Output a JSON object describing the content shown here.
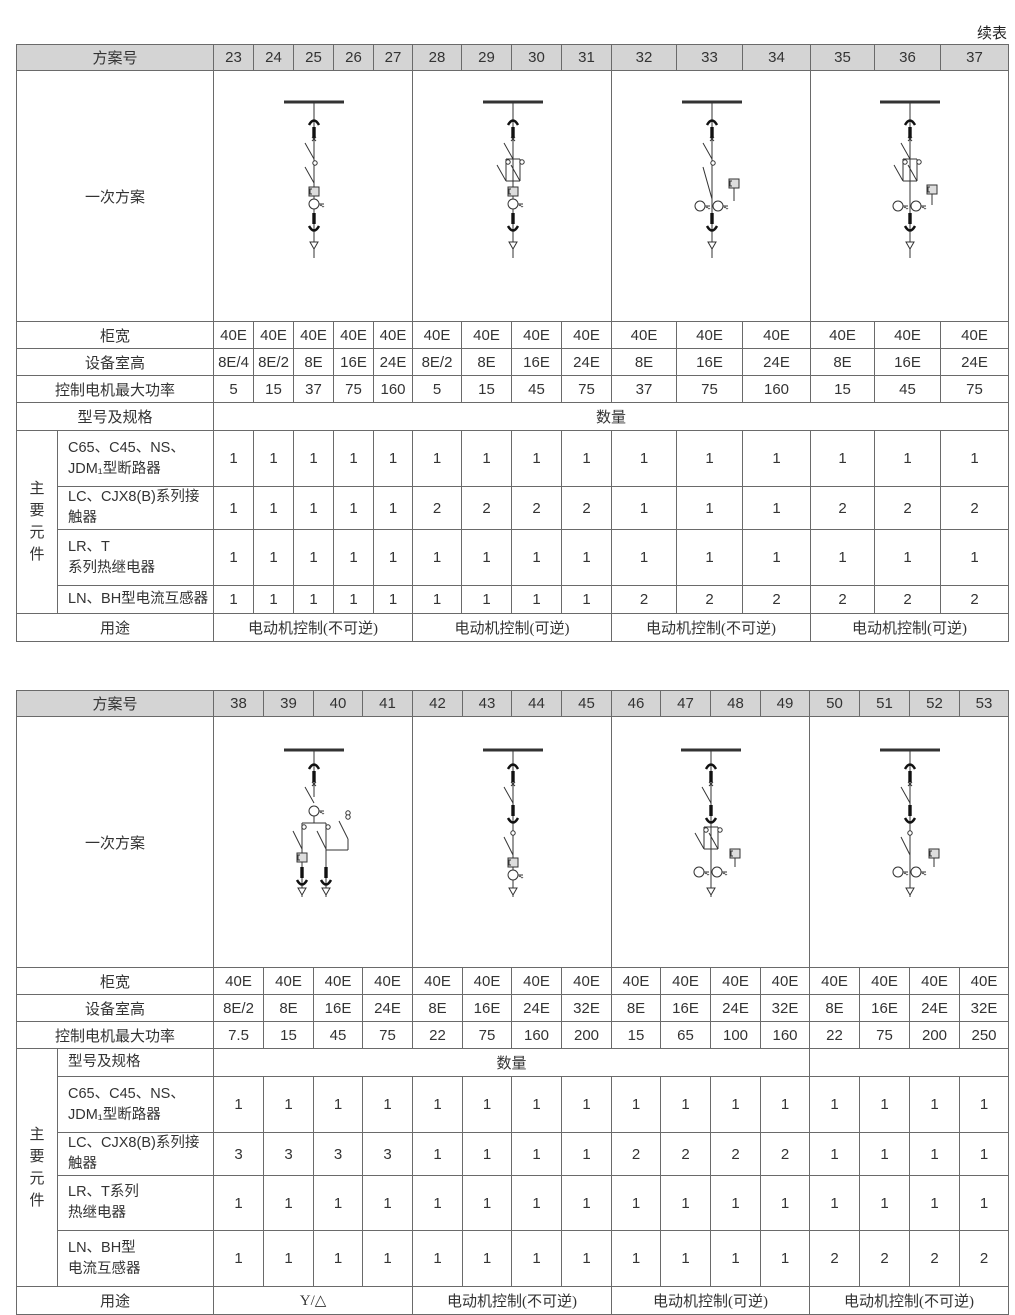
{
  "continued_label": "续表",
  "tables": [
    {
      "scheme_label": "方案号",
      "schemes": [
        "23",
        "24",
        "25",
        "26",
        "27",
        "28",
        "29",
        "30",
        "31",
        "32",
        "33",
        "34",
        "35",
        "36",
        "37"
      ],
      "diagram_label": "一次方案",
      "params": [
        {
          "label": "柜宽",
          "values": [
            "40E",
            "40E",
            "40E",
            "40E",
            "40E",
            "40E",
            "40E",
            "40E",
            "40E",
            "40E",
            "40E",
            "40E",
            "40E",
            "40E",
            "40E"
          ]
        },
        {
          "label": "设备室高",
          "values": [
            "8E/4",
            "8E/2",
            "8E",
            "16E",
            "24E",
            "8E/2",
            "8E",
            "16E",
            "24E",
            "8E",
            "16E",
            "24E",
            "8E",
            "16E",
            "24E"
          ]
        },
        {
          "label": "控制电机最大功率",
          "values": [
            "5",
            "15",
            "37",
            "75",
            "160",
            "5",
            "15",
            "45",
            "75",
            "37",
            "75",
            "160",
            "15",
            "45",
            "75"
          ]
        }
      ],
      "spec_label": "型号及规格",
      "qty_label": "数量",
      "group_label": "主\n要\n元\n件",
      "components": [
        {
          "label": "C65、C45、NS、\nJDM₁型断路器",
          "values": [
            "1",
            "1",
            "1",
            "1",
            "1",
            "1",
            "1",
            "1",
            "1",
            "1",
            "1",
            "1",
            "1",
            "1",
            "1"
          ]
        },
        {
          "label": "LC、CJX8(B)系列接触器",
          "values": [
            "1",
            "1",
            "1",
            "1",
            "1",
            "2",
            "2",
            "2",
            "2",
            "1",
            "1",
            "1",
            "2",
            "2",
            "2"
          ]
        },
        {
          "label": "LR、T\n系列热继电器",
          "values": [
            "1",
            "1",
            "1",
            "1",
            "1",
            "1",
            "1",
            "1",
            "1",
            "1",
            "1",
            "1",
            "1",
            "1",
            "1"
          ]
        },
        {
          "label": "LN、BH型电流互感器",
          "values": [
            "1",
            "1",
            "1",
            "1",
            "1",
            "1",
            "1",
            "1",
            "1",
            "2",
            "2",
            "2",
            "2",
            "2",
            "2"
          ]
        }
      ],
      "usage_label": "用途",
      "usages": [
        {
          "text": "电动机控制(不可逆)",
          "span": 5
        },
        {
          "text": "电动机控制(可逆)",
          "span": 4
        },
        {
          "text": "电动机控制(不可逆)",
          "span": 3
        },
        {
          "text": "电动机控制(可逆)",
          "span": 3
        }
      ]
    },
    {
      "scheme_label": "方案号",
      "schemes": [
        "38",
        "39",
        "40",
        "41",
        "42",
        "43",
        "44",
        "45",
        "46",
        "47",
        "48",
        "49",
        "50",
        "51",
        "52",
        "53"
      ],
      "diagram_label": "一次方案",
      "params": [
        {
          "label": "柜宽",
          "values": [
            "40E",
            "40E",
            "40E",
            "40E",
            "40E",
            "40E",
            "40E",
            "40E",
            "40E",
            "40E",
            "40E",
            "40E",
            "40E",
            "40E",
            "40E",
            "40E"
          ]
        },
        {
          "label": "设备室高",
          "values": [
            "8E/2",
            "8E",
            "16E",
            "24E",
            "8E",
            "16E",
            "24E",
            "32E",
            "8E",
            "16E",
            "24E",
            "32E",
            "8E",
            "16E",
            "24E",
            "32E"
          ]
        },
        {
          "label": "控制电机最大功率",
          "values": [
            "7.5",
            "15",
            "45",
            "75",
            "22",
            "75",
            "160",
            "200",
            "15",
            "65",
            "100",
            "160",
            "22",
            "75",
            "200",
            "250"
          ]
        }
      ],
      "spec_label": "型号及规格",
      "qty_label": "数量",
      "group_label": "主\n要\n元\n件",
      "components": [
        {
          "label": "C65、C45、NS、\nJDM₁型断路器",
          "values": [
            "1",
            "1",
            "1",
            "1",
            "1",
            "1",
            "1",
            "1",
            "1",
            "1",
            "1",
            "1",
            "1",
            "1",
            "1",
            "1"
          ]
        },
        {
          "label": "LC、CJX8(B)系列接触器",
          "values": [
            "3",
            "3",
            "3",
            "3",
            "1",
            "1",
            "1",
            "1",
            "2",
            "2",
            "2",
            "2",
            "1",
            "1",
            "1",
            "1"
          ]
        },
        {
          "label": "LR、T系列\n热继电器",
          "values": [
            "1",
            "1",
            "1",
            "1",
            "1",
            "1",
            "1",
            "1",
            "1",
            "1",
            "1",
            "1",
            "1",
            "1",
            "1",
            "1"
          ]
        },
        {
          "label": "LN、BH型\n电流互感器",
          "values": [
            "1",
            "1",
            "1",
            "1",
            "1",
            "1",
            "1",
            "1",
            "1",
            "1",
            "1",
            "1",
            "2",
            "2",
            "2",
            "2"
          ]
        }
      ],
      "usage_label": "用途",
      "usages": [
        {
          "text": "Y/△",
          "span": 4
        },
        {
          "text": "电动机控制(不可逆)",
          "span": 4
        },
        {
          "text": "电动机控制(可逆)",
          "span": 4
        },
        {
          "text": "电动机控制(不可逆)",
          "span": 4
        }
      ]
    }
  ]
}
